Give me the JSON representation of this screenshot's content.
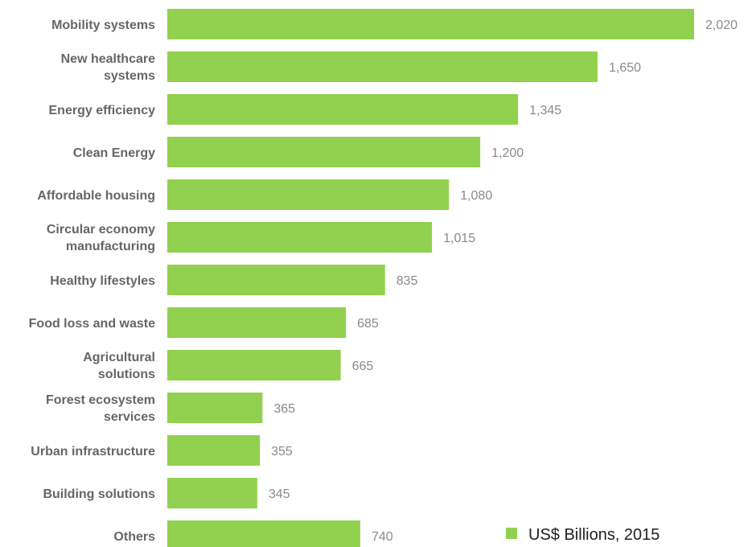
{
  "chart_data": {
    "type": "bar",
    "orientation": "horizontal",
    "categories": [
      "Mobility systems",
      "New healthcare systems",
      "Energy efficiency",
      "Clean Energy",
      "Affordable housing",
      "Circular economy manufacturing",
      "Healthy lifestyles",
      "Food loss and waste",
      "Agricultural solutions",
      "Forest ecosystem services",
      "Urban infrastructure",
      "Building solutions",
      "Others"
    ],
    "category_display_lines": [
      [
        "Mobility systems"
      ],
      [
        "New healthcare",
        "systems"
      ],
      [
        "Energy efficiency"
      ],
      [
        "Clean Energy"
      ],
      [
        "Affordable housing"
      ],
      [
        "Circular economy",
        "manufacturing"
      ],
      [
        "Healthy lifestyles"
      ],
      [
        "Food loss and waste"
      ],
      [
        "Agricultural",
        "solutions"
      ],
      [
        "Forest ecosystem",
        "services"
      ],
      [
        "Urban infrastructure"
      ],
      [
        "Building solutions"
      ],
      [
        "Others"
      ]
    ],
    "series": [
      {
        "name": "US$ Billions, 2015",
        "values": [
          2020,
          1650,
          1345,
          1200,
          1080,
          1015,
          835,
          685,
          665,
          365,
          355,
          345,
          740
        ],
        "value_labels": [
          "2,020",
          "1,650",
          "1,345",
          "1,200",
          "1,080",
          "1,015",
          "835",
          "685",
          "665",
          "365",
          "355",
          "345",
          "740"
        ]
      }
    ],
    "title": "",
    "xlabel": "",
    "ylabel": "",
    "xlim": [
      0,
      2020
    ],
    "grid": false,
    "legend": {
      "position": "bottom-right",
      "labels": [
        "US$ Billions, 2015"
      ]
    },
    "colors": {
      "bar": "#92d050",
      "category_text": "#666666",
      "value_text": "#8a8a8a",
      "legend_text": "#222222"
    }
  }
}
